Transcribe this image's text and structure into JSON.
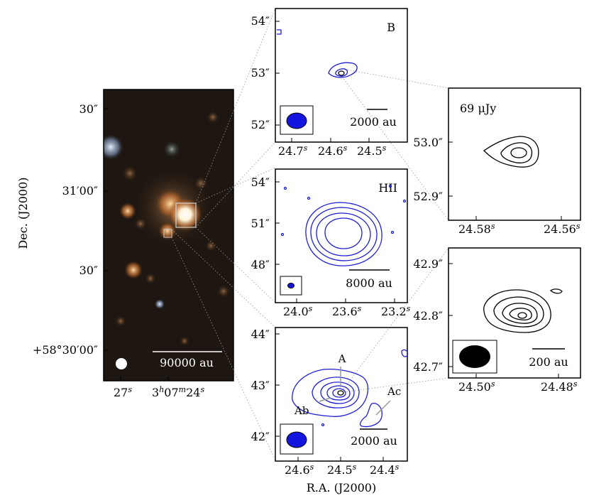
{
  "colors": {
    "contour_blue": "#1f1fd0",
    "beam_blue": "#1515e0",
    "beam_black": "#000000",
    "guide_line": "#999999"
  },
  "left_panel": {
    "y_axis_title": "Dec. (J2000)",
    "y_ticks": [
      "30″",
      "31′00″",
      "30″",
      "+58°30′00″"
    ],
    "x_ticks": [
      "27",
      "3",
      "07",
      "24"
    ],
    "x_tick_sups": [
      "s",
      "h",
      "m",
      "s"
    ],
    "scale_bar": "90000 au"
  },
  "panel_B": {
    "label": "B",
    "y_ticks": [
      "54″",
      "53″",
      "52″"
    ],
    "x_ticks": [
      "24.7",
      "24.6",
      "24.5"
    ],
    "x_sup": "s",
    "scale_bar": "2000 au"
  },
  "panel_HII": {
    "label": "HII",
    "y_ticks": [
      "54″",
      "51″",
      "48″"
    ],
    "x_ticks": [
      "24.0",
      "23.6",
      "23.2"
    ],
    "x_sup": "s",
    "scale_bar": "8000 au"
  },
  "panel_A": {
    "labels": {
      "a": "A",
      "ab": "Ab",
      "ac": "Ac"
    },
    "y_ticks": [
      "44″",
      "43″",
      "42″"
    ],
    "x_ticks": [
      "24.6",
      "24.5",
      "24.4"
    ],
    "x_sup": "s",
    "x_axis_title": "R.A. (J2000)",
    "scale_bar": "2000 au"
  },
  "panel_B_zoom": {
    "flux_label": "69 μJy",
    "y_ticks": [
      "53.0″",
      "52.9″"
    ],
    "x_ticks": [
      "24.58",
      "24.56"
    ],
    "x_sup": "s"
  },
  "panel_A_zoom": {
    "y_ticks": [
      "42.9″",
      "42.8″",
      "42.7″"
    ],
    "x_ticks": [
      "24.50",
      "24.48"
    ],
    "x_sup": "s",
    "scale_bar": "200 au"
  }
}
